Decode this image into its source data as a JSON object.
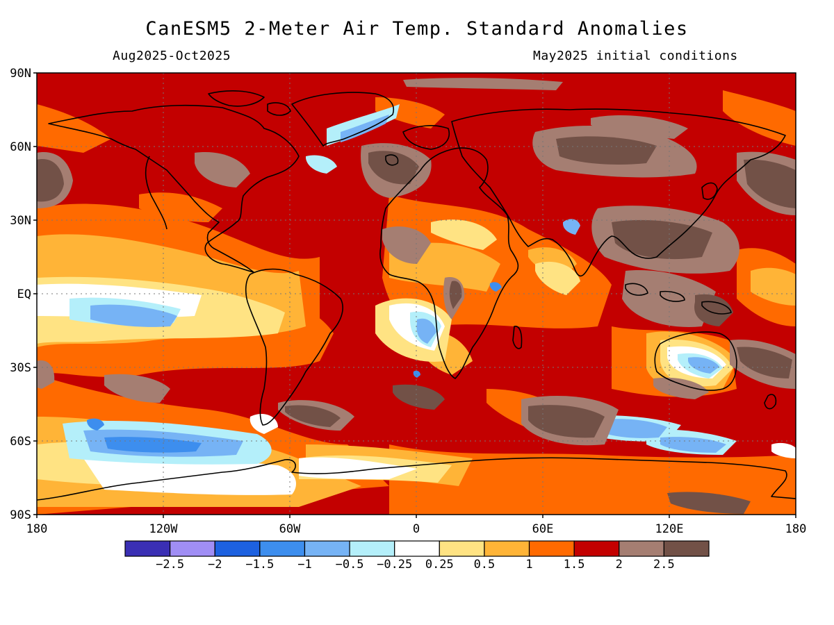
{
  "title": "CanESM5 2-Meter Air Temp. Standard Anomalies",
  "period": "Aug2025-Oct2025",
  "initial_conditions": "May2025 initial conditions",
  "map": {
    "projection": "cylindrical equidistant (global)",
    "lat_ticks": [
      "90N",
      "60N",
      "30N",
      "EQ",
      "30S",
      "60S",
      "90S"
    ],
    "lon_ticks": [
      "180",
      "120W",
      "60W",
      "0",
      "60E",
      "120E",
      "180"
    ],
    "gridlines": "dotted",
    "coastlines": true
  },
  "colorbar": {
    "colors": [
      "#3a2fb4",
      "#a08ef5",
      "#1d61e0",
      "#3d8eee",
      "#76b3f5",
      "#b4effa",
      "#ffffff",
      "#ffe383",
      "#ffb437",
      "#ff6a00",
      "#c30000",
      "#a57e72",
      "#725147"
    ],
    "labels": [
      "-2.5",
      "-2",
      "-1.5",
      "-1",
      "-0.5",
      "-0.25",
      "0.25",
      "0.5",
      "1",
      "1.5",
      "2",
      "2.5"
    ]
  }
}
